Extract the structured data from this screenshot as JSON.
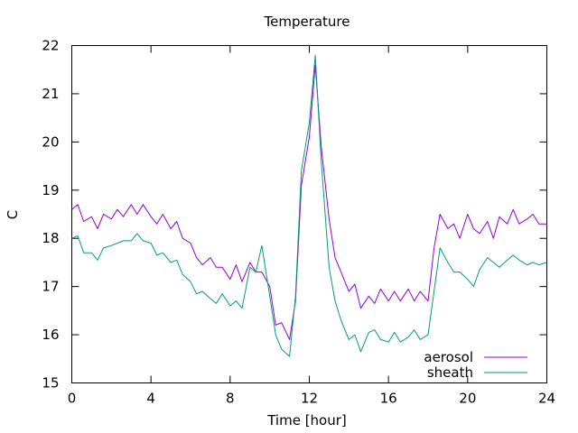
{
  "chart_data": {
    "type": "line",
    "title": "Temperature",
    "xlabel": "Time [hour]",
    "ylabel": "C",
    "xlim": [
      0,
      24
    ],
    "ylim": [
      15,
      22
    ],
    "xticks": [
      0,
      4,
      8,
      12,
      16,
      20,
      24
    ],
    "yticks": [
      15,
      16,
      17,
      18,
      19,
      20,
      21,
      22
    ],
    "grid": false,
    "legend": "bottom-right",
    "series": [
      {
        "name": "aerosol",
        "color": "#9400d3",
        "x": [
          0,
          0.3,
          0.6,
          1.0,
          1.3,
          1.6,
          2.0,
          2.3,
          2.6,
          3.0,
          3.3,
          3.6,
          4.0,
          4.3,
          4.6,
          5.0,
          5.3,
          5.6,
          6.0,
          6.3,
          6.6,
          7.0,
          7.3,
          7.6,
          8.0,
          8.3,
          8.6,
          9.0,
          9.3,
          9.6,
          10.0,
          10.3,
          10.6,
          11.0,
          11.3,
          11.6,
          12.0,
          12.3,
          12.6,
          13.0,
          13.3,
          13.6,
          14.0,
          14.3,
          14.6,
          15.0,
          15.3,
          15.6,
          16.0,
          16.3,
          16.6,
          17.0,
          17.3,
          17.6,
          18.0,
          18.3,
          18.6,
          19.0,
          19.3,
          19.6,
          20.0,
          20.3,
          20.6,
          21.0,
          21.3,
          21.6,
          22.0,
          22.3,
          22.6,
          23.0,
          23.3,
          23.6,
          24.0
        ],
        "y": [
          18.6,
          18.7,
          18.35,
          18.45,
          18.2,
          18.5,
          18.4,
          18.6,
          18.45,
          18.7,
          18.5,
          18.7,
          18.45,
          18.3,
          18.5,
          18.2,
          18.35,
          18.0,
          17.9,
          17.6,
          17.45,
          17.6,
          17.4,
          17.4,
          17.15,
          17.45,
          17.1,
          17.5,
          17.3,
          17.3,
          17.0,
          16.2,
          16.25,
          15.9,
          16.7,
          19.1,
          20.1,
          21.6,
          19.9,
          18.4,
          17.6,
          17.3,
          16.9,
          17.05,
          16.55,
          16.8,
          16.65,
          16.95,
          16.7,
          16.9,
          16.7,
          16.95,
          16.7,
          16.9,
          16.7,
          17.8,
          18.5,
          18.2,
          18.3,
          18.0,
          18.5,
          18.2,
          18.1,
          18.35,
          18.0,
          18.45,
          18.3,
          18.6,
          18.3,
          18.4,
          18.5,
          18.3,
          18.3
        ]
      },
      {
        "name": "sheath",
        "color": "#009e73",
        "x": [
          0,
          0.3,
          0.6,
          1.0,
          1.3,
          1.6,
          2.0,
          2.3,
          2.6,
          3.0,
          3.3,
          3.6,
          4.0,
          4.3,
          4.6,
          5.0,
          5.3,
          5.6,
          6.0,
          6.3,
          6.6,
          7.0,
          7.3,
          7.6,
          8.0,
          8.3,
          8.6,
          9.0,
          9.3,
          9.6,
          10.0,
          10.3,
          10.6,
          11.0,
          11.3,
          11.6,
          12.0,
          12.3,
          12.6,
          13.0,
          13.3,
          13.6,
          14.0,
          14.3,
          14.6,
          15.0,
          15.3,
          15.6,
          16.0,
          16.3,
          16.6,
          17.0,
          17.3,
          17.6,
          18.0,
          18.3,
          18.6,
          19.0,
          19.3,
          19.6,
          20.0,
          20.3,
          20.6,
          21.0,
          21.3,
          21.6,
          22.0,
          22.3,
          22.6,
          23.0,
          23.3,
          23.6,
          24.0
        ],
        "y": [
          18.0,
          18.05,
          17.7,
          17.7,
          17.55,
          17.8,
          17.85,
          17.9,
          17.95,
          17.95,
          18.1,
          17.95,
          17.9,
          17.65,
          17.7,
          17.5,
          17.55,
          17.25,
          17.1,
          16.85,
          16.9,
          16.75,
          16.65,
          16.85,
          16.6,
          16.7,
          16.55,
          17.4,
          17.3,
          17.85,
          16.8,
          16.0,
          15.7,
          15.55,
          16.8,
          19.4,
          20.4,
          21.8,
          19.6,
          17.4,
          16.7,
          16.3,
          15.9,
          16.0,
          15.65,
          16.05,
          16.1,
          15.9,
          15.85,
          16.05,
          15.85,
          15.95,
          16.1,
          15.9,
          16.0,
          16.9,
          17.8,
          17.5,
          17.3,
          17.3,
          17.15,
          17.0,
          17.35,
          17.6,
          17.5,
          17.4,
          17.55,
          17.65,
          17.55,
          17.45,
          17.5,
          17.45,
          17.5
        ]
      }
    ]
  }
}
